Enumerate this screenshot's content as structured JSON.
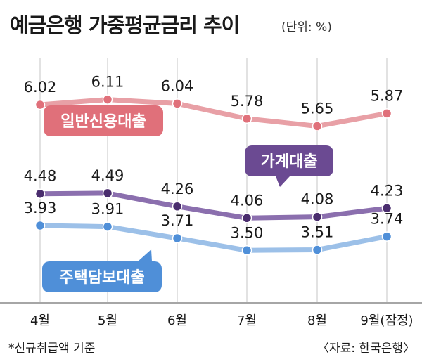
{
  "title": "예금은행 가중평균금리 추이",
  "unit": "(단위: %)",
  "footnote": "*신규취급액 기준",
  "source": "〈자료: 한국은행〉",
  "colors": {
    "credit": "#e8a0a6",
    "credit_dot": "#e0707a",
    "credit_box": "#e0707a",
    "household": "#8b6fae",
    "household_dot": "#4a2d6e",
    "household_box": "#6b4a92",
    "mortgage": "#9cc0e8",
    "mortgage_dot": "#4f8fd8",
    "mortgage_box": "#4f8fd8",
    "grid": "#cfcfcf",
    "axis": "#888888"
  },
  "chart_data": {
    "type": "line",
    "title": "예금은행 가중평균금리 추이",
    "unit": "%",
    "categories": [
      "4월",
      "5월",
      "6월",
      "7월",
      "8월",
      "9월(잠정)"
    ],
    "ylim": [
      3.2,
      6.3
    ],
    "grid": "vertical",
    "series": [
      {
        "name": "일반신용대출",
        "values": [
          6.02,
          6.11,
          6.04,
          5.78,
          5.65,
          5.87
        ],
        "labels": [
          "6.02",
          "6.11",
          "6.04",
          "5.78",
          "5.65",
          "5.87"
        ]
      },
      {
        "name": "가계대출",
        "values": [
          4.48,
          4.49,
          4.26,
          4.06,
          4.08,
          4.23
        ],
        "labels": [
          "4.48",
          "4.49",
          "4.26",
          "4.06",
          "4.08",
          "4.23"
        ]
      },
      {
        "name": "주택담보대출",
        "values": [
          3.93,
          3.91,
          3.71,
          3.5,
          3.51,
          3.74
        ],
        "labels": [
          "3.93",
          "3.91",
          "3.71",
          "3.50",
          "3.51",
          "3.74"
        ]
      }
    ]
  }
}
